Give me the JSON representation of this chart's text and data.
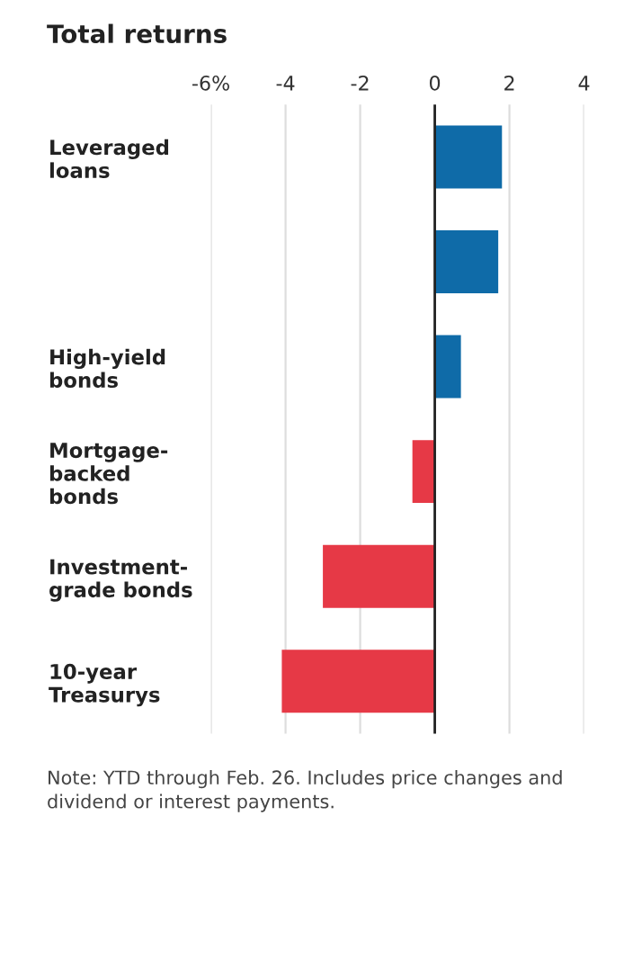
{
  "chart_data": {
    "type": "bar",
    "orientation": "horizontal",
    "title": "Total returns",
    "categories": [
      "Leveraged\nloans",
      null,
      "High-yield\nbonds",
      "Mortgage-\nbacked\nbonds",
      "Investment-\ngrade bonds",
      "10-year\nTreasurys"
    ],
    "values": [
      1.8,
      1.7,
      0.7,
      -0.6,
      -3.0,
      -4.1
    ],
    "colors": [
      "#0f6ba8",
      "#0f6ba8",
      "#0f6ba8",
      "#e63946",
      "#e63946",
      "#e63946"
    ],
    "xlim": [
      -6,
      4
    ],
    "xticks": [
      {
        "value": -6,
        "label": "-6%"
      },
      -4,
      -2,
      0,
      2,
      4
    ],
    "grid": "x",
    "annotations": [
      "Note: YTD through Feb. 26. Includes price changes and dividend or interest payments."
    ]
  }
}
